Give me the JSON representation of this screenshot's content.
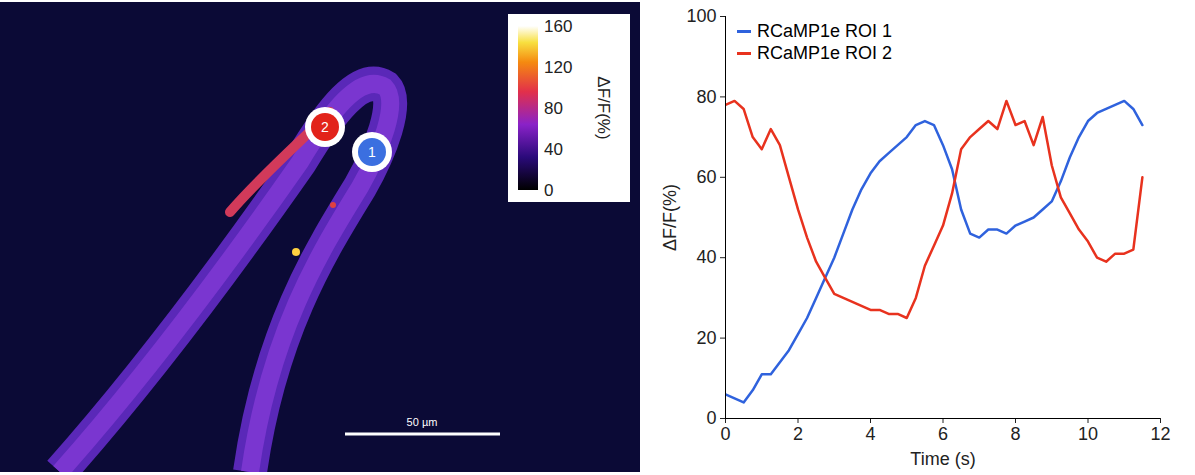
{
  "image_panel": {
    "colorbar": {
      "label": "ΔF/F(%)",
      "range": [
        0,
        160
      ],
      "ticks": [
        0,
        40,
        80,
        120,
        160
      ]
    },
    "rois": [
      {
        "label": "2",
        "color": "#e2231a"
      },
      {
        "label": "1",
        "color": "#3b6fe0"
      }
    ],
    "scale_bar": "50 µm"
  },
  "chart_data": {
    "type": "line",
    "x": [
      0,
      0.25,
      0.5,
      0.75,
      1,
      1.25,
      1.5,
      1.75,
      2,
      2.25,
      2.5,
      2.75,
      3,
      3.25,
      3.5,
      3.75,
      4,
      4.25,
      4.5,
      4.75,
      5,
      5.25,
      5.5,
      5.75,
      6,
      6.25,
      6.5,
      6.75,
      7,
      7.25,
      7.5,
      7.75,
      8,
      8.25,
      8.5,
      8.75,
      9,
      9.25,
      9.5,
      9.75,
      10,
      10.25,
      10.5,
      10.75,
      11,
      11.25,
      11.5
    ],
    "series": [
      {
        "name": "RCaMP1e ROI 1",
        "color": "#2f62dd",
        "values": [
          6,
          5,
          4,
          7,
          11,
          11,
          14,
          17,
          21,
          25,
          30,
          35,
          40,
          46,
          52,
          57,
          61,
          64,
          66,
          68,
          70,
          73,
          74,
          73,
          68,
          62,
          52,
          46,
          45,
          47,
          47,
          46,
          48,
          49,
          50,
          52,
          54,
          59,
          65,
          70,
          74,
          76,
          77,
          78,
          79,
          77,
          73
        ]
      },
      {
        "name": "RCaMP1e ROI 2",
        "color": "#e8321e",
        "values": [
          78,
          79,
          77,
          70,
          67,
          72,
          68,
          60,
          52,
          45,
          39,
          35,
          31,
          30,
          29,
          28,
          27,
          27,
          26,
          26,
          25,
          30,
          38,
          43,
          48,
          56,
          67,
          70,
          72,
          74,
          72,
          79,
          73,
          74,
          68,
          75,
          63,
          55,
          51,
          47,
          44,
          40,
          39,
          41,
          41,
          42,
          60
        ]
      }
    ],
    "xlim": [
      0,
      12
    ],
    "xticks": [
      0,
      2,
      4,
      6,
      8,
      10,
      12
    ],
    "ylim": [
      0,
      100
    ],
    "yticks": [
      0,
      20,
      40,
      60,
      80,
      100
    ],
    "x_label": "Time (s)",
    "y_label": "ΔF/F(%)",
    "legend": "top-left"
  }
}
